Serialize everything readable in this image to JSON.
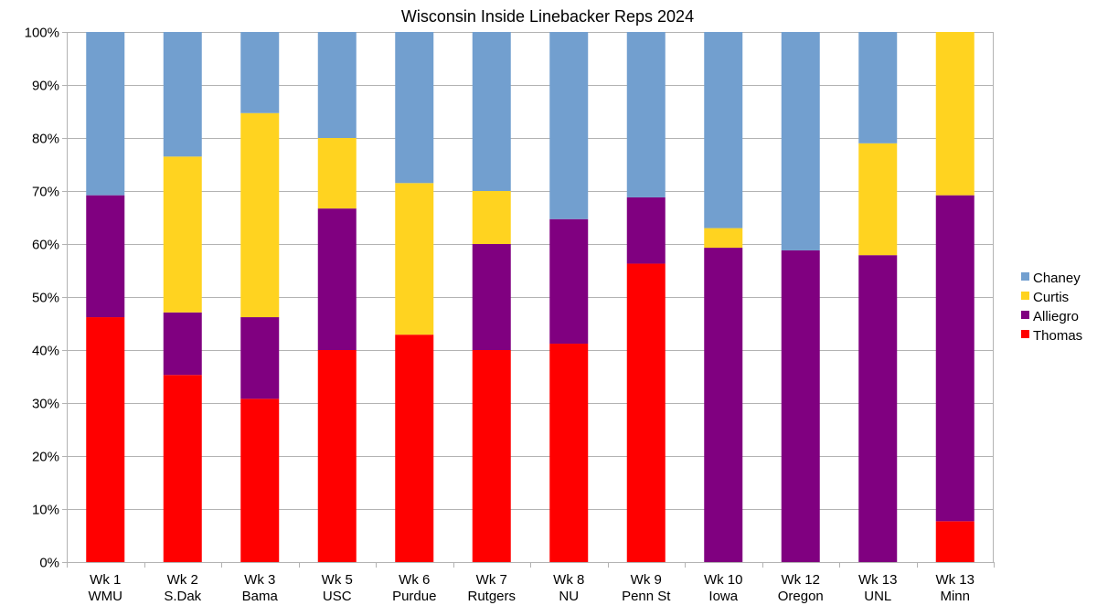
{
  "chart_data": {
    "type": "bar",
    "stacked": true,
    "percent_stacked": true,
    "title": "Wisconsin Inside Linebacker Reps 2024",
    "xlabel": "",
    "ylabel": "",
    "ylim": [
      0,
      100
    ],
    "yticks": [
      "0%",
      "10%",
      "20%",
      "30%",
      "40%",
      "50%",
      "60%",
      "70%",
      "80%",
      "90%",
      "100%"
    ],
    "grid": true,
    "legend_position": "right",
    "categories": [
      [
        "Wk 1",
        "WMU"
      ],
      [
        "Wk 2",
        "S.Dak"
      ],
      [
        "Wk 3",
        "Bama"
      ],
      [
        "Wk 5",
        "USC"
      ],
      [
        "Wk 6",
        "Purdue"
      ],
      [
        "Wk 7",
        "Rutgers"
      ],
      [
        "Wk 8",
        "NU"
      ],
      [
        "Wk 9",
        "Penn St"
      ],
      [
        "Wk 10",
        "Iowa"
      ],
      [
        "Wk 12",
        "Oregon"
      ],
      [
        "Wk 13",
        "UNL"
      ],
      [
        "Wk 13",
        "Minn"
      ]
    ],
    "series": [
      {
        "name": "Thomas",
        "color": "#ff0000",
        "values": [
          46.2,
          35.3,
          30.8,
          40.0,
          42.9,
          40.0,
          41.2,
          56.3,
          0,
          0,
          0,
          7.7
        ]
      },
      {
        "name": "Alliegro",
        "color": "#800080",
        "values": [
          23.0,
          11.8,
          15.4,
          26.7,
          0,
          20.0,
          23.5,
          12.5,
          59.3,
          58.8,
          57.9,
          61.5
        ]
      },
      {
        "name": "Curtis",
        "color": "#ffd320",
        "values": [
          0,
          29.4,
          38.5,
          13.3,
          28.6,
          10.0,
          0,
          0,
          3.7,
          0,
          21.1,
          30.8
        ]
      },
      {
        "name": "Chaney",
        "color": "#729fcf",
        "values": [
          30.8,
          23.5,
          15.3,
          20.0,
          28.5,
          30.0,
          35.3,
          31.2,
          37.0,
          41.2,
          21.0,
          0
        ]
      }
    ],
    "legend_order": [
      "Chaney",
      "Curtis",
      "Alliegro",
      "Thomas"
    ]
  }
}
